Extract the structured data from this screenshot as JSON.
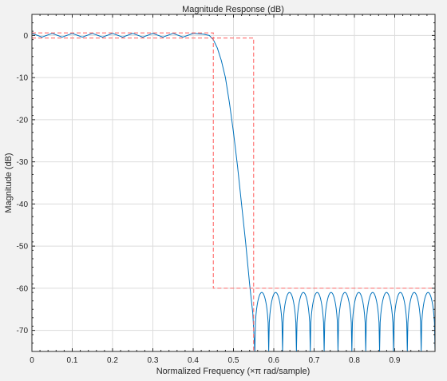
{
  "chart_data": {
    "type": "line",
    "title": "Magnitude Response (dB)",
    "xlabel": "Normalized Frequency (×π rad/sample)",
    "ylabel": "Magnitude (dB)",
    "xlim": [
      0,
      1
    ],
    "ylim": [
      -75,
      5
    ],
    "grid": true,
    "x_ticks": [
      0,
      0.1,
      0.2,
      0.3,
      0.4,
      0.5,
      0.6,
      0.7,
      0.8,
      0.9
    ],
    "x_tick_labels": [
      "0",
      "0.1",
      "0.2",
      "0.3",
      "0.4",
      "0.5",
      "0.6",
      "0.7",
      "0.8",
      "0.9"
    ],
    "y_ticks": [
      0,
      -10,
      -20,
      -30,
      -40,
      -50,
      -60,
      -70
    ],
    "y_tick_labels": [
      "0",
      "-10",
      "-20",
      "-30",
      "-40",
      "-50",
      "-60",
      "-70"
    ],
    "series": [
      {
        "color": "#0072bd",
        "style": "solid",
        "x": [
          0,
          0.025,
          0.05,
          0.075,
          0.1,
          0.125,
          0.15,
          0.175,
          0.2,
          0.225,
          0.25,
          0.275,
          0.3,
          0.325,
          0.35,
          0.375,
          0.4,
          0.425,
          0.44,
          0.45,
          0.46,
          0.47,
          0.48,
          0.49,
          0.5,
          0.51,
          0.52,
          0.53,
          0.54,
          0.548,
          0.553
        ],
        "y": [
          0.5,
          -0.4,
          0.5,
          -0.4,
          0.5,
          -0.4,
          0.5,
          -0.4,
          0.5,
          -0.4,
          0.5,
          -0.4,
          0.5,
          -0.4,
          0.5,
          -0.4,
          0.5,
          0.3,
          0,
          -1,
          -3,
          -6,
          -10,
          -16,
          -23,
          -31,
          -40,
          -49,
          -59,
          -66,
          -75
        ],
        "stopband": {
          "x_start": 0.553,
          "x_end": 1.0,
          "n_lobes": 13,
          "peak": -61,
          "floor": -75
        }
      },
      {
        "color": "#ff6b6b",
        "style": "dashed",
        "x": [
          0,
          0.45,
          0.45,
          1.0
        ],
        "y": [
          0.6,
          0.6,
          -60,
          -60
        ]
      },
      {
        "color": "#ff6b6b",
        "style": "dashed",
        "x": [
          0,
          0.55,
          0.55
        ],
        "y": [
          -0.6,
          -0.6,
          -75
        ]
      }
    ]
  }
}
